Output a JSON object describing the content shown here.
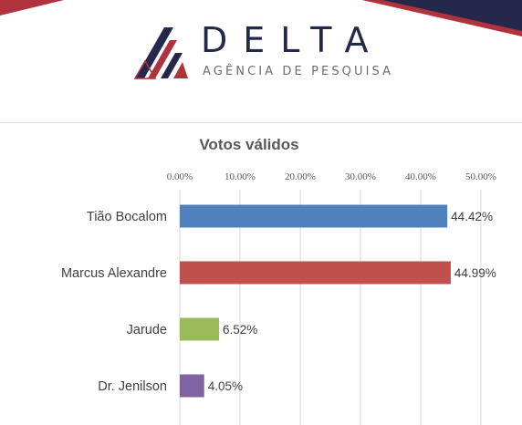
{
  "header": {
    "brand_name": "DELTA",
    "brand_tagline": "AGÊNCIA DE PESQUISA",
    "colors": {
      "navy": "#24284a",
      "crimson": "#b0323c"
    }
  },
  "chart_data": {
    "type": "bar",
    "orientation": "horizontal",
    "title": "Votos válidos",
    "categories": [
      "Tião Bocalom",
      "Marcus Alexandre",
      "Jarude",
      "Dr. Jenilson"
    ],
    "values": [
      44.42,
      44.99,
      6.52,
      4.05
    ],
    "value_labels": [
      "44.42%",
      "44.99%",
      "6.52%",
      "4.05%"
    ],
    "colors": [
      "#4f81bd",
      "#c0504d",
      "#9bbb59",
      "#8064a2"
    ],
    "xlim": [
      0,
      50
    ],
    "xticks": [
      0,
      10,
      20,
      30,
      40,
      50
    ],
    "xtick_labels": [
      "0.00%",
      "10.00%",
      "20.00%",
      "30.00%",
      "40.00%",
      "50.00%"
    ],
    "axis_position": "top",
    "grid": true,
    "legend": "none"
  }
}
